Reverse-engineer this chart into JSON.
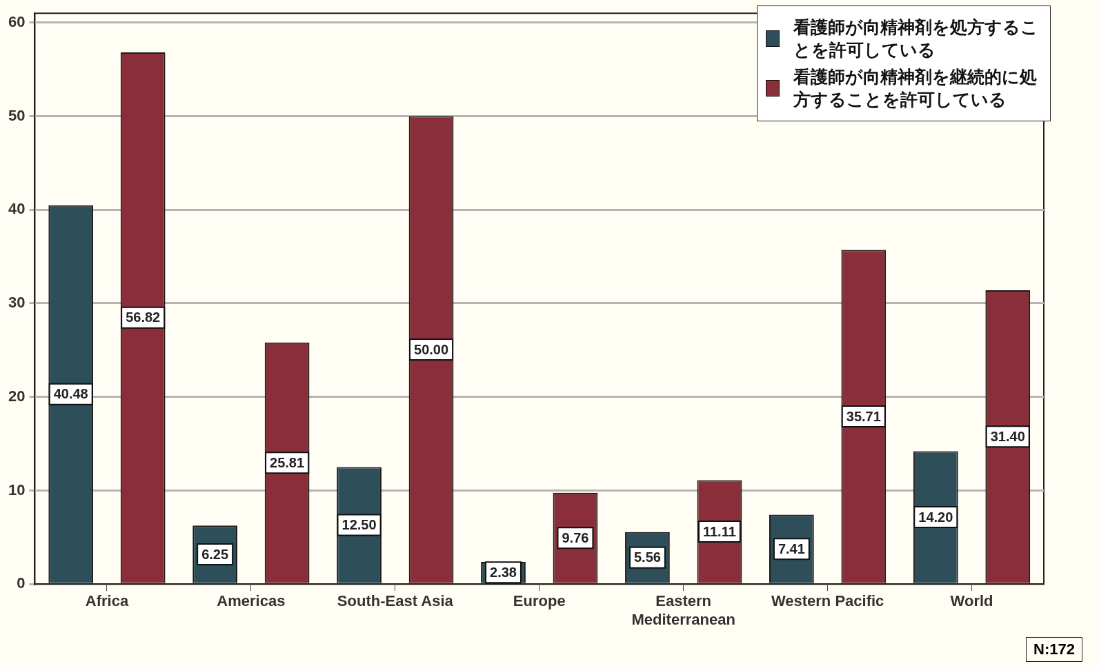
{
  "chart_data": {
    "type": "bar",
    "categories": [
      "Africa",
      "Americas",
      "South-East Asia",
      "Europe",
      "Eastern Mediterranean",
      "Western Pacific",
      "World"
    ],
    "series": [
      {
        "name": "看護師が向精神剤を処方することを許可している",
        "color": "#2e4f59",
        "values": [
          40.48,
          6.25,
          12.5,
          2.38,
          5.56,
          7.41,
          14.2
        ],
        "value_labels": [
          "40.48",
          "6.25",
          "12.50",
          "2.38",
          "5.56",
          "7.41",
          "14.20"
        ]
      },
      {
        "name": "看護師が向精神剤を継続的に処方することを許可している",
        "color": "#8a2f3a",
        "values": [
          56.82,
          25.81,
          50.0,
          9.76,
          11.11,
          35.71,
          31.4
        ],
        "value_labels": [
          "56.82",
          "25.81",
          "50.00",
          "9.76",
          "11.11",
          "35.71",
          "31.40"
        ]
      }
    ],
    "ylim": [
      0,
      61
    ],
    "yticks": [
      0,
      10,
      20,
      30,
      40,
      50,
      60
    ],
    "grid": "y",
    "legend": "top right",
    "annotations": [
      "N:172"
    ]
  }
}
